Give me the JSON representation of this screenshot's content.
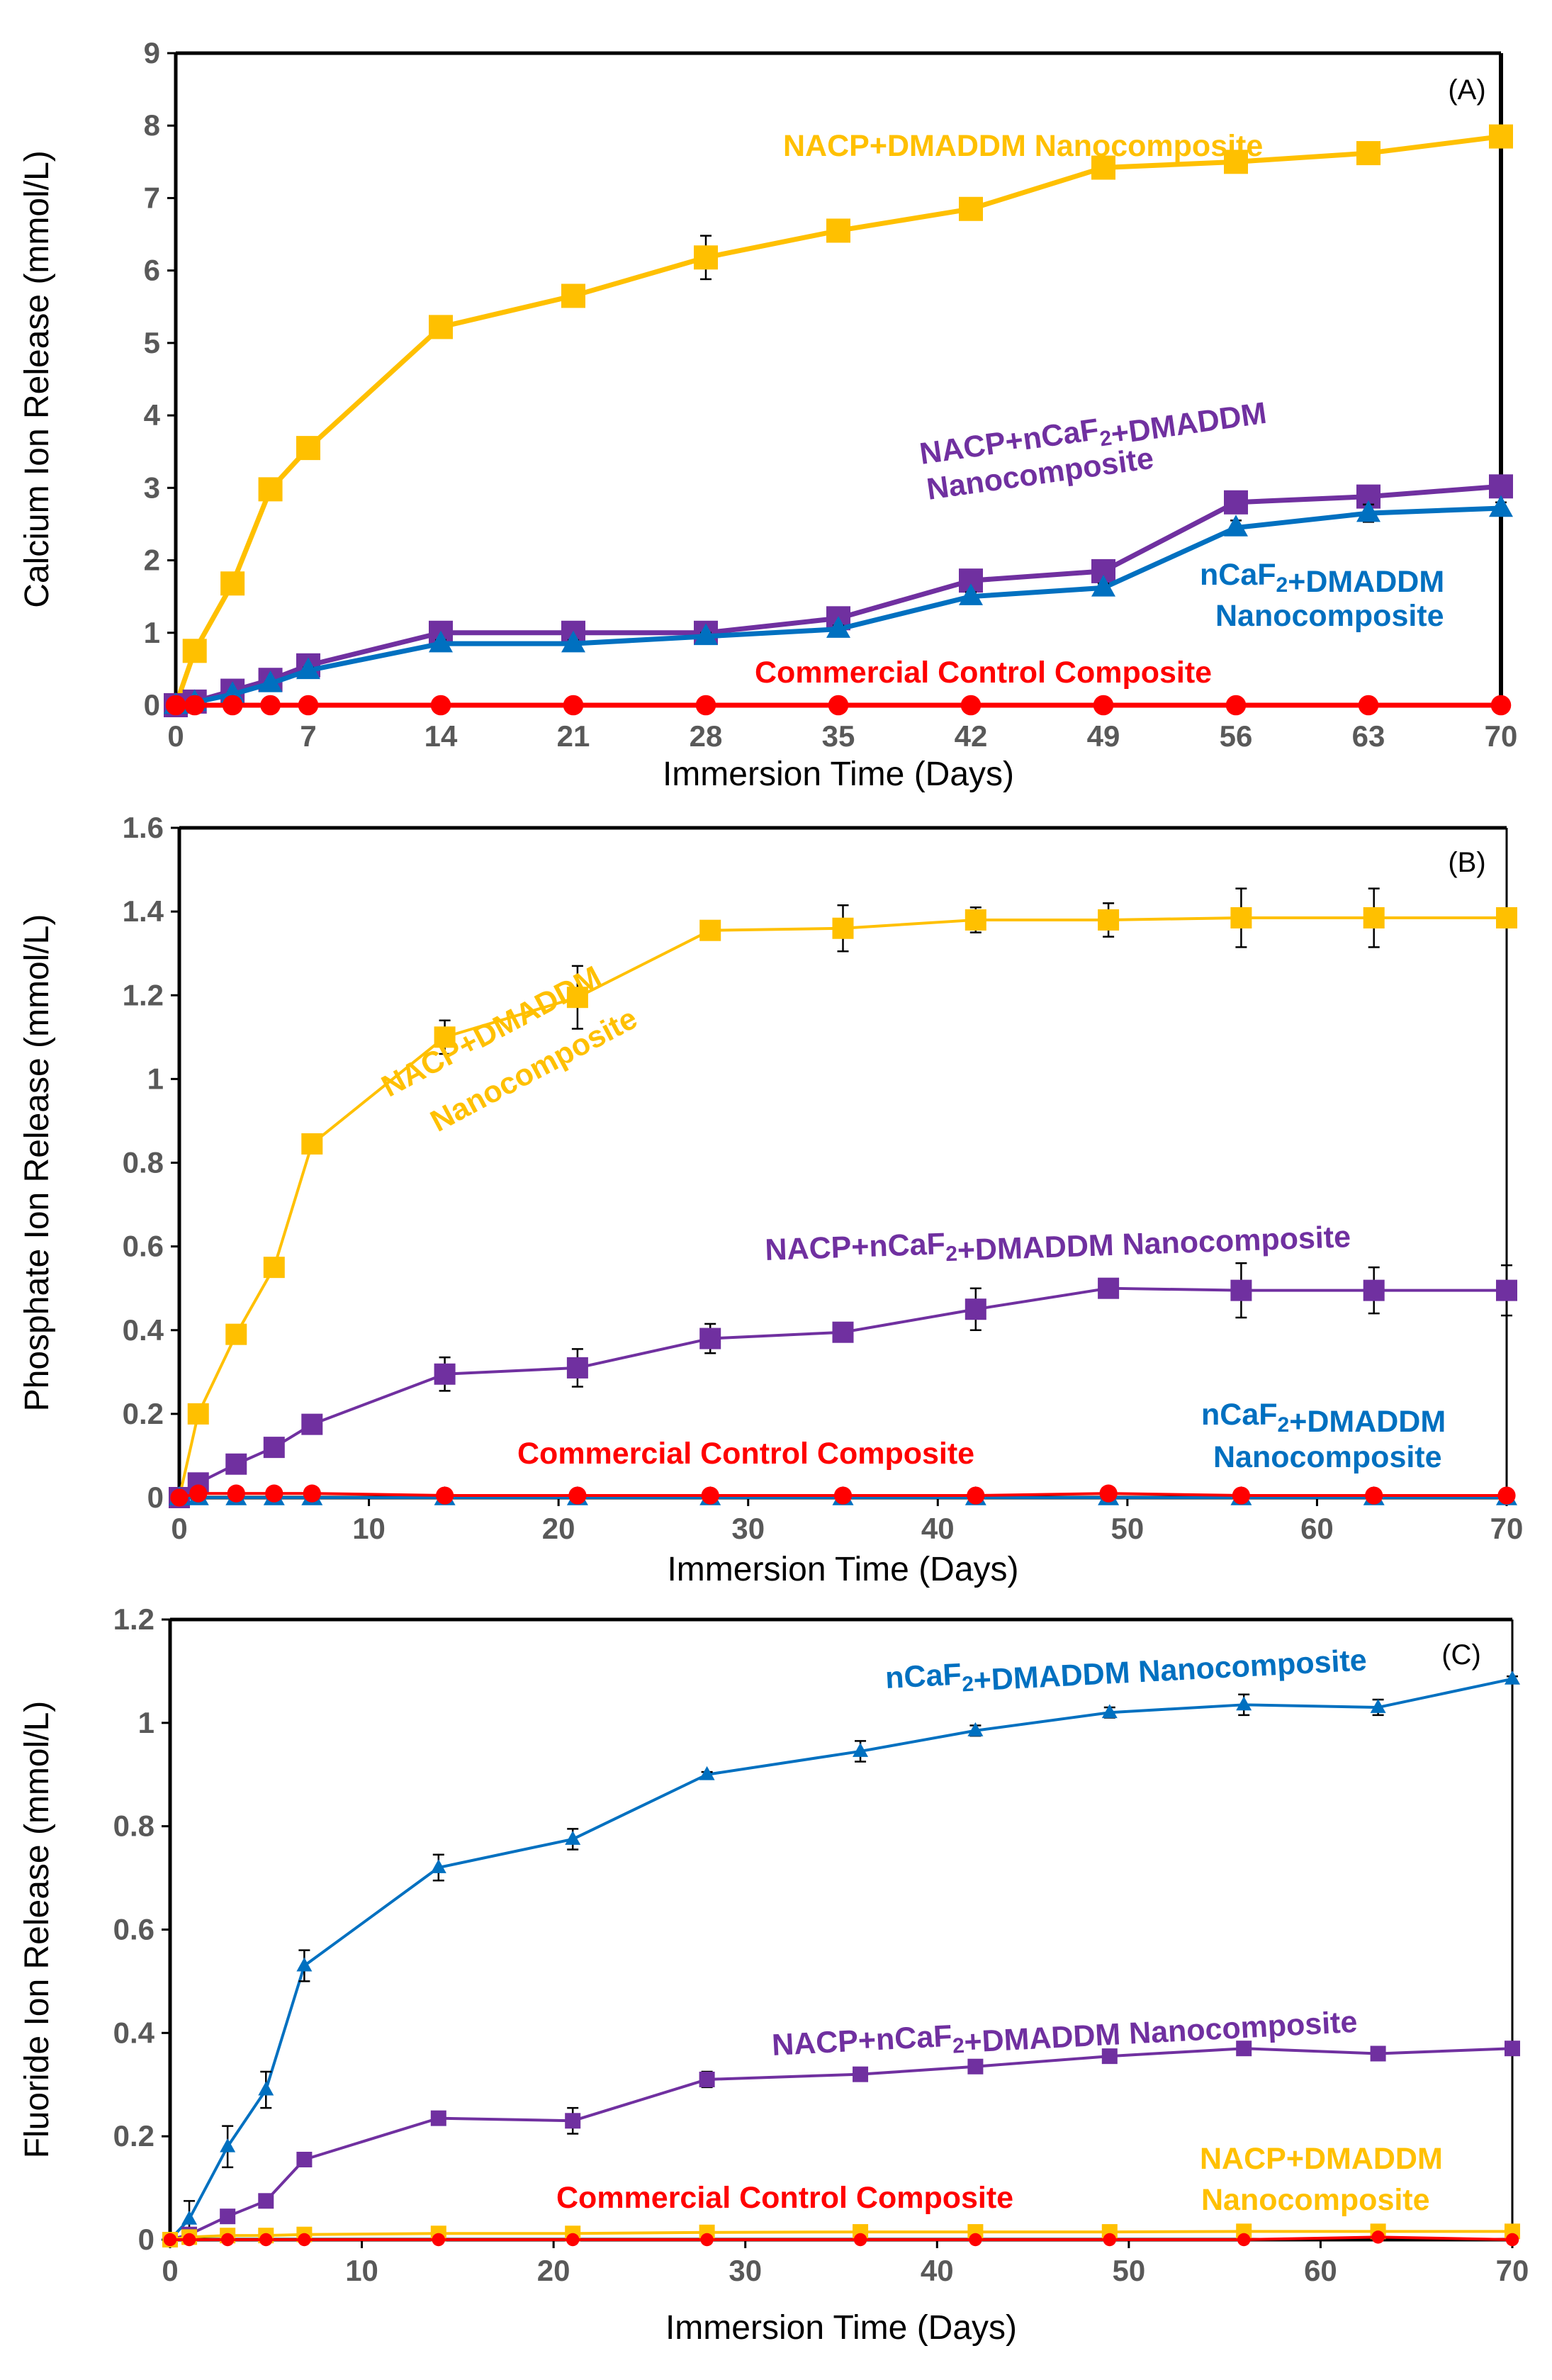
{
  "chart_data": [
    {
      "type": "line",
      "panel_label": "(A)",
      "xlabel": "Immersion Time (Days)",
      "ylabel": "Calcium Ion Release (mmol/L)",
      "xlim": [
        0,
        70
      ],
      "ylim": [
        0,
        9
      ],
      "xticks": [
        0,
        7,
        14,
        21,
        28,
        35,
        42,
        49,
        56,
        63,
        70
      ],
      "yticks": [
        0,
        1,
        2,
        3,
        4,
        5,
        6,
        7,
        8,
        9
      ],
      "grid": false,
      "series": [
        {
          "name": "NACP+DMADDM Nanocomposite",
          "color": "#FFC000",
          "marker": "square",
          "x": [
            0,
            1,
            3,
            5,
            7,
            14,
            21,
            28,
            35,
            42,
            49,
            56,
            63,
            70
          ],
          "values": [
            0,
            0.75,
            1.68,
            2.98,
            3.55,
            5.22,
            5.65,
            6.18,
            6.55,
            6.85,
            7.42,
            7.5,
            7.62,
            7.85
          ],
          "errors": [
            0,
            0.05,
            0.05,
            0.08,
            0.06,
            0.1,
            0.08,
            0.3,
            0.1,
            0.1,
            0.1,
            0.12,
            0.1,
            0.1
          ]
        },
        {
          "name": "NACP+nCaF2+DMADDM Nanocomposite",
          "color": "#7030A0",
          "marker": "square",
          "x": [
            0,
            1,
            3,
            5,
            7,
            14,
            21,
            28,
            35,
            42,
            49,
            56,
            63,
            70
          ],
          "values": [
            0,
            0.05,
            0.2,
            0.35,
            0.55,
            1.0,
            1.0,
            1.0,
            1.2,
            1.72,
            1.85,
            2.8,
            2.88,
            3.02
          ],
          "errors": [
            0,
            0.02,
            0.03,
            0.04,
            0.05,
            0.05,
            0.05,
            0.05,
            0.06,
            0.08,
            0.08,
            0.1,
            0.15,
            0.08
          ]
        },
        {
          "name": "nCaF2+DMADDM Nanocomposite",
          "color": "#0070C0",
          "marker": "triangle",
          "x": [
            0,
            1,
            3,
            5,
            7,
            14,
            21,
            28,
            35,
            42,
            49,
            56,
            63,
            70
          ],
          "values": [
            0,
            0.04,
            0.15,
            0.3,
            0.48,
            0.85,
            0.85,
            0.95,
            1.05,
            1.5,
            1.62,
            2.45,
            2.65,
            2.72
          ],
          "errors": [
            0,
            0.02,
            0.03,
            0.03,
            0.04,
            0.05,
            0.05,
            0.05,
            0.05,
            0.06,
            0.06,
            0.1,
            0.12,
            0.08
          ]
        },
        {
          "name": "Commercial Control Composite",
          "color": "#FF0000",
          "marker": "circle",
          "x": [
            0,
            1,
            3,
            5,
            7,
            14,
            21,
            28,
            35,
            42,
            49,
            56,
            63,
            70
          ],
          "values": [
            0,
            0,
            0,
            0,
            0,
            0,
            0,
            0,
            0,
            0,
            0,
            0,
            0,
            0
          ],
          "errors": [
            0,
            0,
            0,
            0,
            0,
            0,
            0,
            0,
            0,
            0,
            0,
            0,
            0,
            0
          ]
        }
      ],
      "annotations": [
        {
          "text": "NACP+DMADDM Nanocomposite",
          "color": "#FFC000"
        },
        {
          "text": "NACP+nCaF2+DMADDM",
          "color": "#7030A0"
        },
        {
          "text": "Nanocomposite",
          "color": "#7030A0"
        },
        {
          "text": "nCaF2+DMADDM",
          "color": "#0070C0"
        },
        {
          "text": "Nanocomposite",
          "color": "#0070C0"
        },
        {
          "text": "Commercial Control  Composite",
          "color": "#FF0000"
        }
      ]
    },
    {
      "type": "line",
      "panel_label": "(B)",
      "xlabel": "Immersion Time (Days)",
      "ylabel": "Phosphate Ion Release (mmol/L)",
      "xlim": [
        0,
        70
      ],
      "ylim": [
        0,
        1.6
      ],
      "xticks": [
        0,
        10,
        20,
        30,
        40,
        50,
        60,
        70
      ],
      "yticks": [
        0,
        0.2,
        0.4,
        0.6,
        0.8,
        1,
        1.2,
        1.4,
        1.6
      ],
      "grid": false,
      "series": [
        {
          "name": "NACP+DMADDM Nanocomposite",
          "color": "#FFC000",
          "marker": "square",
          "x": [
            0,
            1,
            3,
            5,
            7,
            14,
            21,
            28,
            35,
            42,
            49,
            56,
            63,
            70
          ],
          "values": [
            0,
            0.2,
            0.39,
            0.55,
            0.845,
            1.1,
            1.195,
            1.355,
            1.36,
            1.38,
            1.38,
            1.385,
            1.385,
            1.385
          ],
          "errors": [
            0,
            0.01,
            0.015,
            0.015,
            0.015,
            0.04,
            0.075,
            0.01,
            0.055,
            0.03,
            0.04,
            0.07,
            0.07,
            0.01
          ]
        },
        {
          "name": "NACP+nCaF2+DMADDM Nanocomposite",
          "color": "#7030A0",
          "marker": "square",
          "x": [
            0,
            1,
            3,
            5,
            7,
            14,
            21,
            28,
            35,
            42,
            49,
            56,
            63,
            70
          ],
          "values": [
            0,
            0.035,
            0.08,
            0.12,
            0.175,
            0.295,
            0.31,
            0.38,
            0.395,
            0.45,
            0.5,
            0.495,
            0.495,
            0.495
          ],
          "errors": [
            0,
            0.005,
            0.01,
            0.01,
            0.015,
            0.04,
            0.045,
            0.035,
            0.01,
            0.05,
            0.01,
            0.065,
            0.055,
            0.06
          ]
        },
        {
          "name": "nCaF2+DMADDM Nanocomposite",
          "color": "#0070C0",
          "marker": "triangle",
          "x": [
            0,
            1,
            3,
            5,
            7,
            14,
            21,
            28,
            35,
            42,
            49,
            56,
            63,
            70
          ],
          "values": [
            0,
            0,
            0,
            0,
            0,
            0,
            0,
            0,
            0,
            0,
            0,
            0,
            0,
            0
          ],
          "errors": [
            0,
            0,
            0,
            0,
            0,
            0,
            0,
            0,
            0,
            0,
            0,
            0,
            0,
            0
          ]
        },
        {
          "name": "Commercial Control Composite",
          "color": "#FF0000",
          "marker": "circle",
          "x": [
            0,
            1,
            3,
            5,
            7,
            14,
            21,
            28,
            35,
            42,
            49,
            56,
            63,
            70
          ],
          "values": [
            0,
            0.01,
            0.01,
            0.01,
            0.01,
            0.005,
            0.005,
            0.005,
            0.005,
            0.005,
            0.01,
            0.005,
            0.005,
            0.005
          ],
          "errors": [
            0,
            0,
            0,
            0,
            0,
            0,
            0,
            0,
            0,
            0,
            0,
            0,
            0,
            0
          ]
        }
      ],
      "annotations": [
        {
          "text": "NACP+DMADDM",
          "color": "#FFC000"
        },
        {
          "text": "Nanocomposite",
          "color": "#FFC000"
        },
        {
          "text": "NACP+nCaF2+DMADDM Nanocomposite",
          "color": "#7030A0"
        },
        {
          "text": "nCaF2+DMADDM",
          "color": "#0070C0"
        },
        {
          "text": "Nanocomposite",
          "color": "#0070C0"
        },
        {
          "text": "Commercial Control  Composite",
          "color": "#FF0000"
        }
      ]
    },
    {
      "type": "line",
      "panel_label": "(C)",
      "xlabel": "Immersion Time (Days)",
      "ylabel": "Fluoride Ion Release (mmol/L)",
      "xlim": [
        0,
        70
      ],
      "ylim": [
        0,
        1.2
      ],
      "xticks": [
        0,
        10,
        20,
        30,
        40,
        50,
        60,
        70
      ],
      "yticks": [
        0,
        0.2,
        0.4,
        0.6,
        0.8,
        1,
        1.2
      ],
      "grid": false,
      "series": [
        {
          "name": "nCaF2+DMADDM Nanocomposite",
          "color": "#0070C0",
          "marker": "triangle",
          "x": [
            0,
            1,
            3,
            5,
            7,
            14,
            21,
            28,
            36,
            42,
            49,
            56,
            63,
            70
          ],
          "values": [
            0,
            0.04,
            0.18,
            0.29,
            0.53,
            0.72,
            0.775,
            0.9,
            0.945,
            0.985,
            1.02,
            1.035,
            1.03,
            1.085
          ],
          "errors": [
            0,
            0.035,
            0.04,
            0.035,
            0.03,
            0.025,
            0.02,
            0.005,
            0.02,
            0.01,
            0.01,
            0.02,
            0.015,
            0.005
          ]
        },
        {
          "name": "NACP+nCaF2+DMADDM Nanocomposite",
          "color": "#7030A0",
          "marker": "square",
          "x": [
            0,
            1,
            3,
            5,
            7,
            14,
            21,
            28,
            36,
            42,
            49,
            56,
            63,
            70
          ],
          "values": [
            0,
            0.01,
            0.045,
            0.075,
            0.155,
            0.235,
            0.23,
            0.31,
            0.32,
            0.335,
            0.355,
            0.37,
            0.36,
            0.37
          ],
          "errors": [
            0,
            0.005,
            0.005,
            0.005,
            0.005,
            0.005,
            0.025,
            0.015,
            0.005,
            0.005,
            0.005,
            0.005,
            0.005,
            0.005
          ]
        },
        {
          "name": "NACP+DMADDM Nanocomposite",
          "color": "#FFC000",
          "marker": "square",
          "x": [
            0,
            1,
            3,
            5,
            7,
            14,
            21,
            28,
            36,
            42,
            49,
            56,
            63,
            70
          ],
          "values": [
            0,
            0.005,
            0.008,
            0.008,
            0.01,
            0.012,
            0.012,
            0.014,
            0.015,
            0.015,
            0.015,
            0.016,
            0.016,
            0.016
          ],
          "errors": [
            0,
            0,
            0,
            0,
            0,
            0,
            0,
            0,
            0,
            0,
            0,
            0,
            0,
            0
          ]
        },
        {
          "name": "Commercial Control Composite",
          "color": "#FF0000",
          "marker": "circle",
          "x": [
            0,
            1,
            3,
            5,
            7,
            14,
            21,
            28,
            36,
            42,
            49,
            56,
            63,
            70
          ],
          "values": [
            0,
            0,
            0,
            0,
            0,
            0,
            0,
            0,
            0,
            0,
            0,
            0,
            0.005,
            0
          ],
          "errors": [
            0,
            0,
            0,
            0,
            0,
            0,
            0,
            0,
            0,
            0,
            0,
            0,
            0,
            0
          ]
        }
      ],
      "annotations": [
        {
          "text": "nCaF2+DMADDM Nanocomposite",
          "color": "#0070C0"
        },
        {
          "text": "NACP+nCaF2+DMADDM Nanocomposite",
          "color": "#7030A0"
        },
        {
          "text": "NACP+DMADDM",
          "color": "#FFC000"
        },
        {
          "text": "Nanocomposite",
          "color": "#FFC000"
        },
        {
          "text": "Commercial Control  Composite",
          "color": "#FF0000"
        }
      ]
    }
  ]
}
